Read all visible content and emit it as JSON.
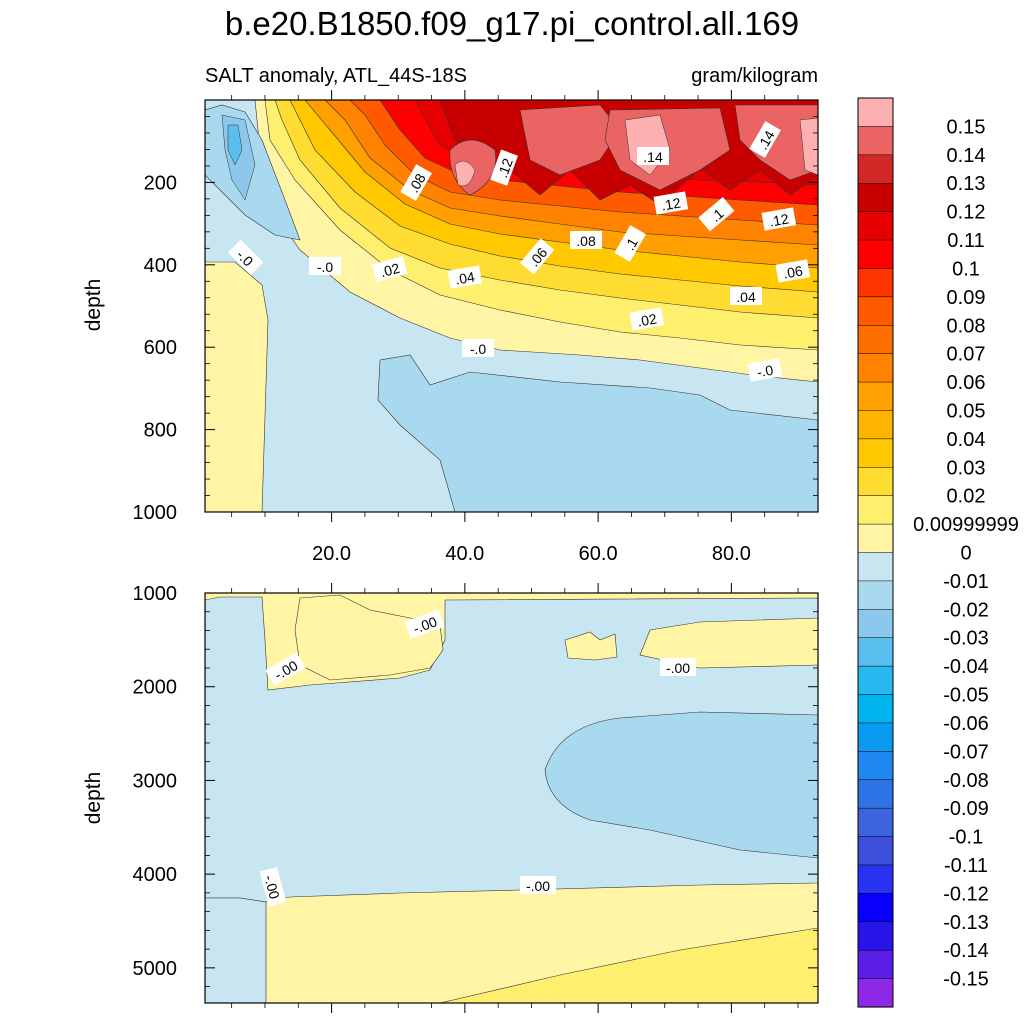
{
  "chart_data": {
    "type": "heatmap",
    "title": "b.e20.B1850.f09_g17.pi_control.all.169",
    "subtitle_left": "SALT anomaly, ATL_44S-18S",
    "subtitle_right": "gram/kilogram",
    "colorbar": {
      "labels": [
        "0.15",
        "0.14",
        "0.13",
        "0.12",
        "0.11",
        "0.1",
        "0.09",
        "0.08",
        "0.07",
        "0.06",
        "0.05",
        "0.04",
        "0.03",
        "0.02",
        "0.00999999",
        "0",
        "-0.01",
        "-0.02",
        "-0.03",
        "-0.04",
        "-0.05",
        "-0.06",
        "-0.07",
        "-0.08",
        "-0.09",
        "-0.1",
        "-0.11",
        "-0.12",
        "-0.13",
        "-0.14",
        "-0.15"
      ],
      "colors": [
        "#fcb0b0",
        "#ea6464",
        "#d32828",
        "#c80000",
        "#e60000",
        "#ff0000",
        "#ff3300",
        "#ff5a00",
        "#ff6e00",
        "#ff8200",
        "#ffa000",
        "#ffb400",
        "#ffc800",
        "#ffdc32",
        "#ffef6e",
        "#fff5a5",
        "#c8e6f2",
        "#a9d9ef",
        "#8dc8ec",
        "#5abeef",
        "#28b8f0",
        "#00b4f0",
        "#0a9bf0",
        "#1e87f0",
        "#2d73e6",
        "#3c64dc",
        "#3c50dc",
        "#2832f0",
        "#0a00ff",
        "#2814e8",
        "#5a1ee6",
        "#8c28e6"
      ]
    },
    "panels": [
      {
        "name": "upper",
        "xlabel": "",
        "ylabel": "depth",
        "x_ticks": [
          "20.0",
          "40.0",
          "60.0",
          "80.0"
        ],
        "y_ticks": [
          "200",
          "400",
          "600",
          "800",
          "1000"
        ],
        "xlim": [
          1,
          93
        ],
        "ylim": [
          0,
          1000
        ],
        "contour_labels": [
          ".08",
          ".12",
          ".14",
          ".14",
          ".12",
          ".1",
          ".12",
          "-.0",
          "-.0",
          ".02",
          ".04",
          ".06",
          ".08",
          ".1",
          ".06",
          ".04",
          ".02",
          "-.0",
          "-.0"
        ]
      },
      {
        "name": "lower",
        "xlabel": "",
        "ylabel": "depth",
        "y_ticks": [
          "1000",
          "2000",
          "3000",
          "4000",
          "5000"
        ],
        "xlim": [
          1,
          93
        ],
        "ylim": [
          1000,
          5375
        ],
        "contour_labels": [
          "-.00",
          "-.00",
          "-.00",
          "-.00",
          "-.00"
        ]
      }
    ]
  }
}
